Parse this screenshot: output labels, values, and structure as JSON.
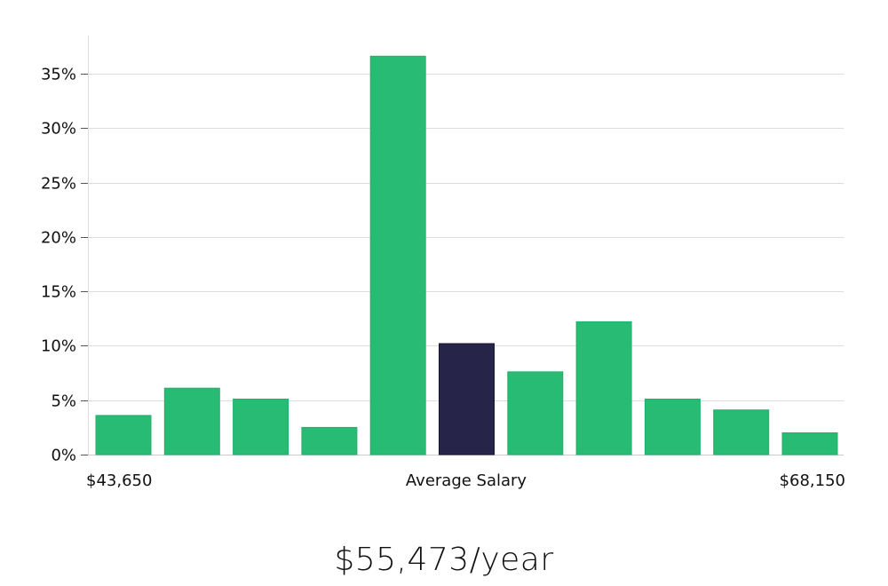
{
  "chart_data": {
    "type": "bar",
    "categories": [
      "1",
      "2",
      "3",
      "4",
      "5",
      "6",
      "7",
      "8",
      "9",
      "10",
      "11"
    ],
    "values": [
      3.6,
      6.1,
      5.1,
      2.5,
      36.6,
      10.2,
      7.6,
      12.2,
      5.1,
      4.1,
      2.0
    ],
    "highlight_index": 5,
    "ylim": [
      0,
      38.5
    ],
    "yticks": [
      0,
      5,
      10,
      15,
      20,
      25,
      30,
      35
    ],
    "ytick_labels": [
      "0%",
      "5%",
      "10%",
      "15%",
      "20%",
      "25%",
      "30%",
      "35%"
    ],
    "x_labels": {
      "left": "$43,650",
      "center": "Average Salary",
      "right": "$68,150"
    },
    "colors": {
      "bar": "#27bb73",
      "highlight": "#262449",
      "grid": "#dddddd",
      "axis": "#cccccc"
    },
    "grid": true
  },
  "summary": {
    "salary": "$55,473/year"
  }
}
